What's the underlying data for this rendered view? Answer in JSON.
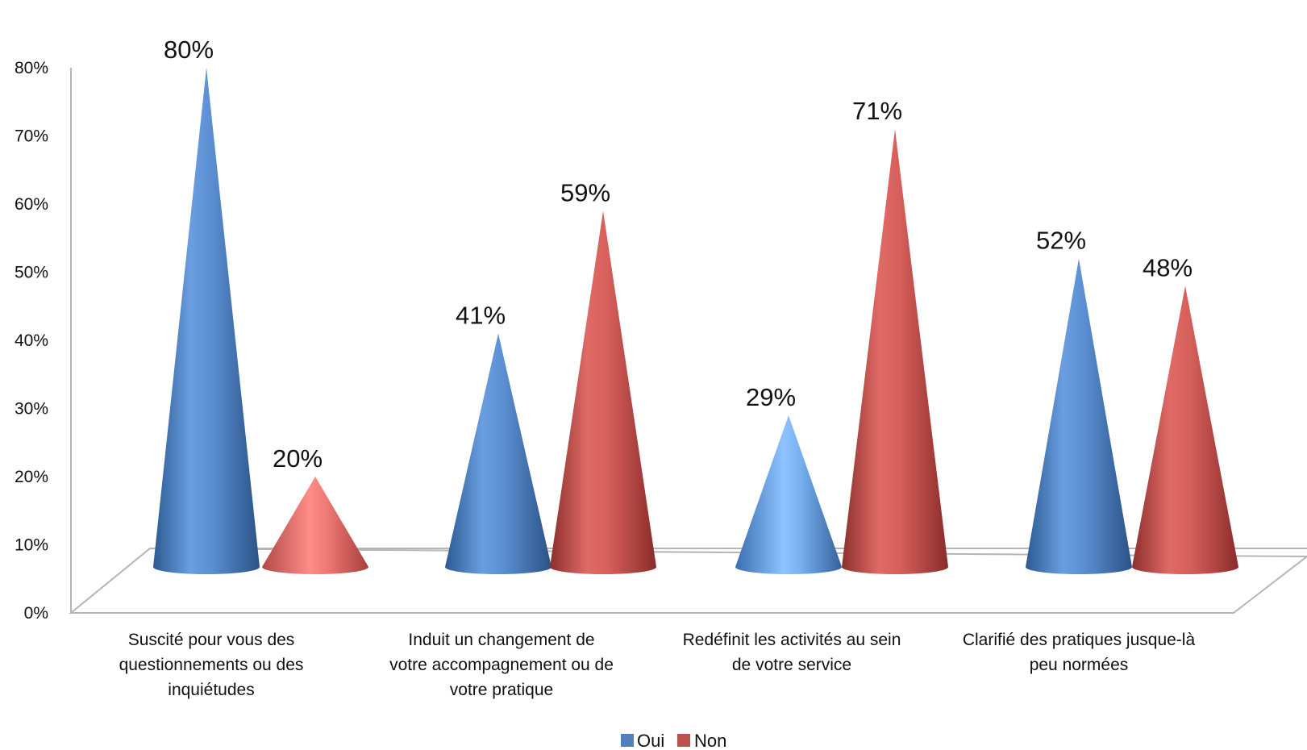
{
  "chart_data": {
    "type": "bar",
    "subtype": "3d-cone",
    "categories": [
      [
        "Suscité pour vous des",
        "questionnements ou des",
        "inquiétudes"
      ],
      [
        "Induit un changement de",
        "votre accompagnement ou de",
        "votre pratique"
      ],
      [
        "Redéfinit les activités au sein",
        "de votre service"
      ],
      [
        "Clarifié des pratiques jusque-là",
        "peu normées"
      ]
    ],
    "series": [
      {
        "name": "Oui",
        "values": [
          80,
          41,
          29,
          52
        ],
        "labels": [
          "80%",
          "41%",
          "29%",
          "52%"
        ],
        "color": "#4F81BD"
      },
      {
        "name": "Non",
        "values": [
          20,
          59,
          71,
          48
        ],
        "labels": [
          "20%",
          "59%",
          "71%",
          "48%"
        ],
        "color": "#C0504D"
      }
    ],
    "ylim": [
      0,
      80
    ],
    "yticks": [
      "0%",
      "10%",
      "20%",
      "30%",
      "40%",
      "50%",
      "60%",
      "70%",
      "80%"
    ],
    "grid": false,
    "legend": "bottom"
  }
}
